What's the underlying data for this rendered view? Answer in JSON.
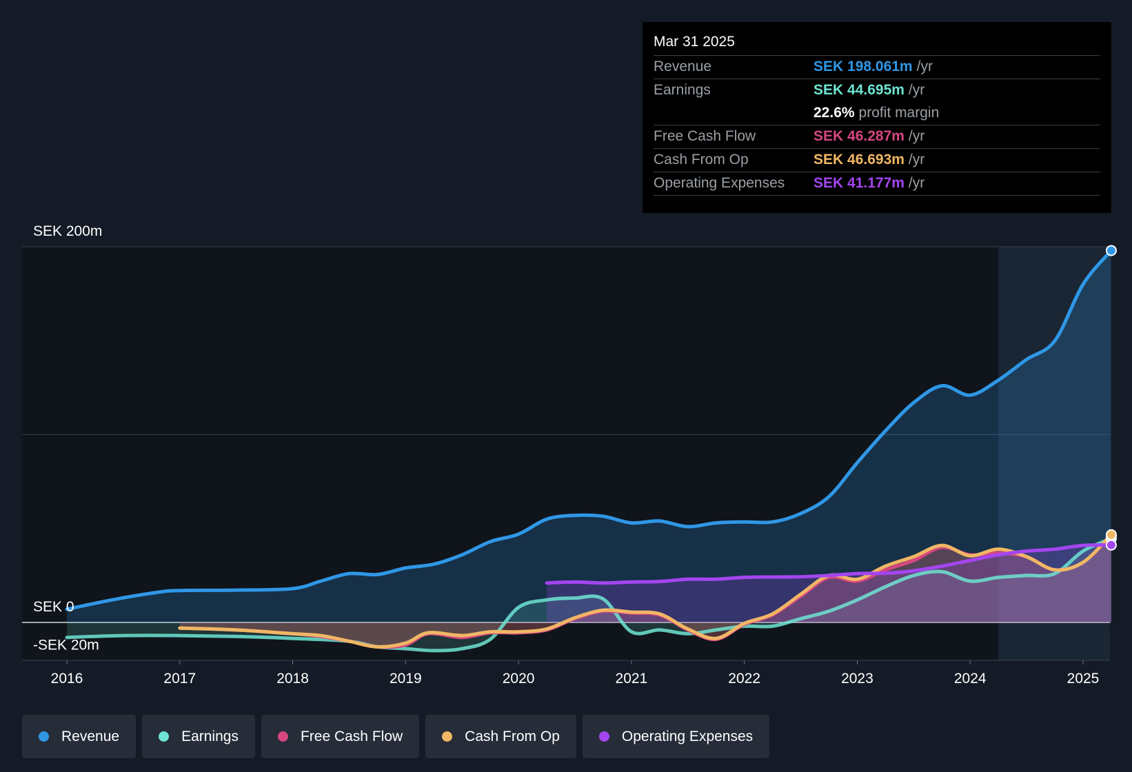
{
  "tooltip": {
    "date": "Mar 31 2025",
    "rows": [
      {
        "label": "Revenue",
        "value": "SEK 198.061m",
        "unit": "/yr",
        "color": "#2f97e6"
      },
      {
        "label": "Earnings",
        "value": "SEK 44.695m",
        "unit": "/yr",
        "color": "#6ee4d2"
      },
      {
        "label": "",
        "value": "22.6%",
        "unit": "profit margin",
        "color": "#ffffff"
      },
      {
        "label": "Free Cash Flow",
        "value": "SEK 46.287m",
        "unit": "/yr",
        "color": "#d6477f"
      },
      {
        "label": "Cash From Op",
        "value": "SEK 46.693m",
        "unit": "/yr",
        "color": "#f0b765"
      },
      {
        "label": "Operating Expenses",
        "value": "SEK 41.177m",
        "unit": "/yr",
        "color": "#a446f0"
      }
    ]
  },
  "legend": [
    {
      "label": "Revenue",
      "color": "#2f97e6"
    },
    {
      "label": "Earnings",
      "color": "#6ee4d2"
    },
    {
      "label": "Free Cash Flow",
      "color": "#d6477f"
    },
    {
      "label": "Cash From Op",
      "color": "#f0b765"
    },
    {
      "label": "Operating Expenses",
      "color": "#a446f0"
    }
  ],
  "chart_data": {
    "type": "line",
    "title": "",
    "xlabel": "",
    "ylabel": "",
    "currency": "SEK",
    "ylim": [
      -20,
      200
    ],
    "xlim": [
      2015.6,
      2025.25
    ],
    "y_tick_labels": [
      {
        "value": 200,
        "label": "SEK 200m"
      },
      {
        "value": 0,
        "label": "SEK 0"
      },
      {
        "value": -20,
        "label": "-SEK 20m"
      }
    ],
    "gridlines": [
      200,
      100,
      0
    ],
    "x_ticks": [
      2016,
      2017,
      2018,
      2019,
      2020,
      2021,
      2022,
      2023,
      2024,
      2025
    ],
    "x_tick_labels": [
      "2016",
      "2017",
      "2018",
      "2019",
      "2020",
      "2021",
      "2022",
      "2023",
      "2024",
      "2025"
    ],
    "highlight_from": 2024.25,
    "legend_position": "bottom",
    "series": [
      {
        "name": "Revenue",
        "color": "#2f97e6",
        "points": [
          [
            2016.0,
            7
          ],
          [
            2016.4,
            12
          ],
          [
            2016.8,
            16
          ],
          [
            2017.0,
            17
          ],
          [
            2017.5,
            17.2
          ],
          [
            2018.0,
            18
          ],
          [
            2018.25,
            22
          ],
          [
            2018.5,
            26
          ],
          [
            2018.75,
            25.5
          ],
          [
            2019.0,
            29
          ],
          [
            2019.25,
            31
          ],
          [
            2019.5,
            36
          ],
          [
            2019.75,
            43
          ],
          [
            2020.0,
            47
          ],
          [
            2020.25,
            55
          ],
          [
            2020.5,
            57
          ],
          [
            2020.75,
            56.5
          ],
          [
            2021.0,
            53
          ],
          [
            2021.25,
            54
          ],
          [
            2021.5,
            51
          ],
          [
            2021.75,
            53
          ],
          [
            2022.0,
            53.5
          ],
          [
            2022.25,
            53.5
          ],
          [
            2022.5,
            58
          ],
          [
            2022.75,
            67
          ],
          [
            2023.0,
            85
          ],
          [
            2023.25,
            102
          ],
          [
            2023.5,
            117
          ],
          [
            2023.75,
            126
          ],
          [
            2024.0,
            121
          ],
          [
            2024.25,
            129
          ],
          [
            2024.5,
            140
          ],
          [
            2024.75,
            150
          ],
          [
            2025.0,
            180
          ],
          [
            2025.25,
            198
          ]
        ]
      },
      {
        "name": "Earnings",
        "color": "#6ee4d2",
        "points": [
          [
            2016.0,
            -8
          ],
          [
            2016.5,
            -7
          ],
          [
            2017.0,
            -7
          ],
          [
            2017.5,
            -7.5
          ],
          [
            2018.0,
            -8.5
          ],
          [
            2018.5,
            -10
          ],
          [
            2018.75,
            -13
          ],
          [
            2019.0,
            -14
          ],
          [
            2019.25,
            -15
          ],
          [
            2019.5,
            -14
          ],
          [
            2019.75,
            -9
          ],
          [
            2020.0,
            8
          ],
          [
            2020.25,
            12
          ],
          [
            2020.5,
            13
          ],
          [
            2020.75,
            12.5
          ],
          [
            2021.0,
            -5
          ],
          [
            2021.25,
            -4
          ],
          [
            2021.5,
            -6
          ],
          [
            2021.75,
            -4
          ],
          [
            2022.0,
            -2
          ],
          [
            2022.25,
            -2
          ],
          [
            2022.5,
            2
          ],
          [
            2022.75,
            6
          ],
          [
            2023.0,
            12
          ],
          [
            2023.25,
            19
          ],
          [
            2023.5,
            25
          ],
          [
            2023.75,
            27
          ],
          [
            2024.0,
            22
          ],
          [
            2024.25,
            24
          ],
          [
            2024.5,
            25
          ],
          [
            2024.75,
            26
          ],
          [
            2025.0,
            38
          ],
          [
            2025.25,
            44.7
          ]
        ]
      },
      {
        "name": "Free Cash Flow",
        "color": "#d6477f",
        "points": [
          [
            2017.0,
            -3
          ],
          [
            2017.5,
            -4
          ],
          [
            2018.0,
            -6
          ],
          [
            2018.25,
            -7.5
          ],
          [
            2018.5,
            -10
          ],
          [
            2018.75,
            -13
          ],
          [
            2019.0,
            -12
          ],
          [
            2019.2,
            -6
          ],
          [
            2019.5,
            -8
          ],
          [
            2019.75,
            -5.5
          ],
          [
            2020.0,
            -5.5
          ],
          [
            2020.25,
            -4
          ],
          [
            2020.5,
            2
          ],
          [
            2020.75,
            6
          ],
          [
            2021.0,
            5
          ],
          [
            2021.25,
            4
          ],
          [
            2021.5,
            -4
          ],
          [
            2021.75,
            -9
          ],
          [
            2022.0,
            -1
          ],
          [
            2022.25,
            4
          ],
          [
            2022.5,
            14
          ],
          [
            2022.75,
            24
          ],
          [
            2023.0,
            22
          ],
          [
            2023.25,
            28
          ],
          [
            2023.5,
            33
          ],
          [
            2023.75,
            40
          ],
          [
            2024.0,
            36
          ],
          [
            2024.25,
            37
          ],
          [
            2024.5,
            35
          ],
          [
            2024.75,
            28
          ],
          [
            2025.0,
            32
          ],
          [
            2025.25,
            46.3
          ]
        ]
      },
      {
        "name": "Cash From Op",
        "color": "#f0b765",
        "points": [
          [
            2017.0,
            -3
          ],
          [
            2017.5,
            -4
          ],
          [
            2018.0,
            -6
          ],
          [
            2018.25,
            -7
          ],
          [
            2018.5,
            -10
          ],
          [
            2018.75,
            -13
          ],
          [
            2019.0,
            -11
          ],
          [
            2019.2,
            -5.5
          ],
          [
            2019.5,
            -7
          ],
          [
            2019.75,
            -5
          ],
          [
            2020.0,
            -5
          ],
          [
            2020.25,
            -3.5
          ],
          [
            2020.5,
            2.5
          ],
          [
            2020.75,
            6.5
          ],
          [
            2021.0,
            5.5
          ],
          [
            2021.25,
            4.5
          ],
          [
            2021.5,
            -3.5
          ],
          [
            2021.75,
            -8.5
          ],
          [
            2022.0,
            -0.5
          ],
          [
            2022.25,
            4.5
          ],
          [
            2022.5,
            15
          ],
          [
            2022.75,
            25
          ],
          [
            2023.0,
            23
          ],
          [
            2023.25,
            30
          ],
          [
            2023.5,
            35
          ],
          [
            2023.75,
            41
          ],
          [
            2024.0,
            35.5
          ],
          [
            2024.25,
            39
          ],
          [
            2024.5,
            35
          ],
          [
            2024.75,
            28
          ],
          [
            2025.0,
            32
          ],
          [
            2025.25,
            46.7
          ]
        ]
      },
      {
        "name": "Operating Expenses",
        "color": "#a446f0",
        "points": [
          [
            2020.25,
            21
          ],
          [
            2020.5,
            21.5
          ],
          [
            2020.75,
            21
          ],
          [
            2021.0,
            21.5
          ],
          [
            2021.25,
            21.8
          ],
          [
            2021.5,
            23
          ],
          [
            2021.75,
            23
          ],
          [
            2022.0,
            24
          ],
          [
            2022.25,
            24.2
          ],
          [
            2022.5,
            24.3
          ],
          [
            2022.75,
            25
          ],
          [
            2023.0,
            26
          ],
          [
            2023.25,
            26.2
          ],
          [
            2023.5,
            27.5
          ],
          [
            2023.75,
            30
          ],
          [
            2024.0,
            33
          ],
          [
            2024.25,
            36
          ],
          [
            2024.5,
            38
          ],
          [
            2024.75,
            39
          ],
          [
            2025.0,
            41
          ],
          [
            2025.25,
            41.2
          ]
        ]
      }
    ]
  }
}
